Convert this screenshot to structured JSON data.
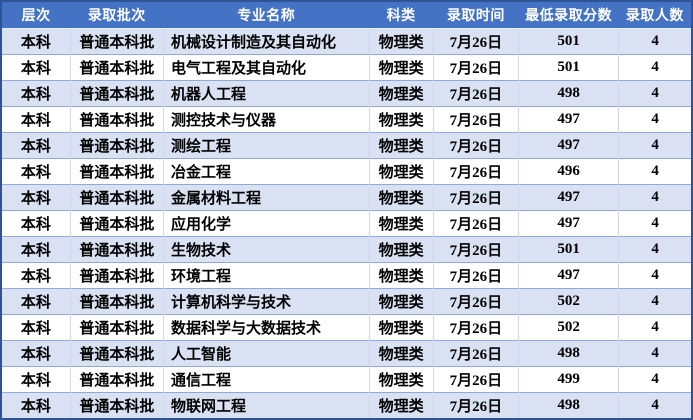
{
  "table": {
    "name": "admissions-results-table",
    "columns": [
      {
        "key": "level",
        "label": "层次"
      },
      {
        "key": "batch",
        "label": "录取批次"
      },
      {
        "key": "major",
        "label": "专业名称"
      },
      {
        "key": "category",
        "label": "科类"
      },
      {
        "key": "time",
        "label": "录取时间"
      },
      {
        "key": "min_score",
        "label": "最低录取分数"
      },
      {
        "key": "count",
        "label": "录取人数"
      }
    ],
    "rows": [
      [
        "本科",
        "普通本科批",
        "机械设计制造及其自动化",
        "物理类",
        "7月26日",
        "501",
        "4"
      ],
      [
        "本科",
        "普通本科批",
        "电气工程及其自动化",
        "物理类",
        "7月26日",
        "501",
        "4"
      ],
      [
        "本科",
        "普通本科批",
        "机器人工程",
        "物理类",
        "7月26日",
        "498",
        "4"
      ],
      [
        "本科",
        "普通本科批",
        "测控技术与仪器",
        "物理类",
        "7月26日",
        "497",
        "4"
      ],
      [
        "本科",
        "普通本科批",
        "测绘工程",
        "物理类",
        "7月26日",
        "497",
        "4"
      ],
      [
        "本科",
        "普通本科批",
        "冶金工程",
        "物理类",
        "7月26日",
        "496",
        "4"
      ],
      [
        "本科",
        "普通本科批",
        "金属材料工程",
        "物理类",
        "7月26日",
        "497",
        "4"
      ],
      [
        "本科",
        "普通本科批",
        "应用化学",
        "物理类",
        "7月26日",
        "497",
        "4"
      ],
      [
        "本科",
        "普通本科批",
        "生物技术",
        "物理类",
        "7月26日",
        "501",
        "4"
      ],
      [
        "本科",
        "普通本科批",
        "环境工程",
        "物理类",
        "7月26日",
        "497",
        "4"
      ],
      [
        "本科",
        "普通本科批",
        "计算机科学与技术",
        "物理类",
        "7月26日",
        "502",
        "4"
      ],
      [
        "本科",
        "普通本科批",
        "数据科学与大数据技术",
        "物理类",
        "7月26日",
        "502",
        "4"
      ],
      [
        "本科",
        "普通本科批",
        "人工智能",
        "物理类",
        "7月26日",
        "498",
        "4"
      ],
      [
        "本科",
        "普通本科批",
        "通信工程",
        "物理类",
        "7月26日",
        "499",
        "4"
      ],
      [
        "本科",
        "普通本科批",
        "物联网工程",
        "物理类",
        "7月26日",
        "498",
        "4"
      ]
    ],
    "colors": {
      "header_bg": "#4472C4",
      "header_text": "#FFFFFF",
      "band_bg": "#D9E1F2",
      "row_bg": "#FFFFFF",
      "border_inner": "#8EA9DB",
      "border_outer": "#2F5496",
      "text": "#000000"
    }
  }
}
